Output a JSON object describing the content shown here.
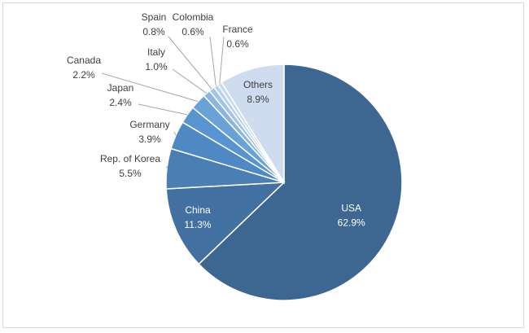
{
  "chart_data": {
    "type": "pie",
    "title": "",
    "slices": [
      {
        "label": "USA",
        "value": 62.9,
        "value_label": "62.9%",
        "color": "#3d6790",
        "label_mode": "inside-light"
      },
      {
        "label": "China",
        "value": 11.3,
        "value_label": "11.3%",
        "color": "#4170a1",
        "label_mode": "inside-light"
      },
      {
        "label": "Rep. of Korea",
        "value": 5.5,
        "value_label": "5.5%",
        "color": "#4b7fb3",
        "label_mode": "outside"
      },
      {
        "label": "Germany",
        "value": 3.9,
        "value_label": "3.9%",
        "color": "#4f89c4",
        "label_mode": "outside"
      },
      {
        "label": "Japan",
        "value": 2.4,
        "value_label": "2.4%",
        "color": "#5894cf",
        "label_mode": "outside"
      },
      {
        "label": "Canada",
        "value": 2.2,
        "value_label": "2.2%",
        "color": "#6aa2d8",
        "label_mode": "outside"
      },
      {
        "label": "Italy",
        "value": 1.0,
        "value_label": "1.0%",
        "color": "#8ab5e0",
        "label_mode": "outside"
      },
      {
        "label": "Spain",
        "value": 0.8,
        "value_label": "0.8%",
        "color": "#a2c4e6",
        "label_mode": "outside"
      },
      {
        "label": "Colombia",
        "value": 0.6,
        "value_label": "0.6%",
        "color": "#b7d0ea",
        "label_mode": "outside"
      },
      {
        "label": "France",
        "value": 0.6,
        "value_label": "0.6%",
        "color": "#c8daee",
        "label_mode": "outside"
      },
      {
        "label": "Others",
        "value": 8.9,
        "value_label": "8.9%",
        "color": "#cfdcef",
        "label_mode": "inside-dark"
      }
    ]
  }
}
